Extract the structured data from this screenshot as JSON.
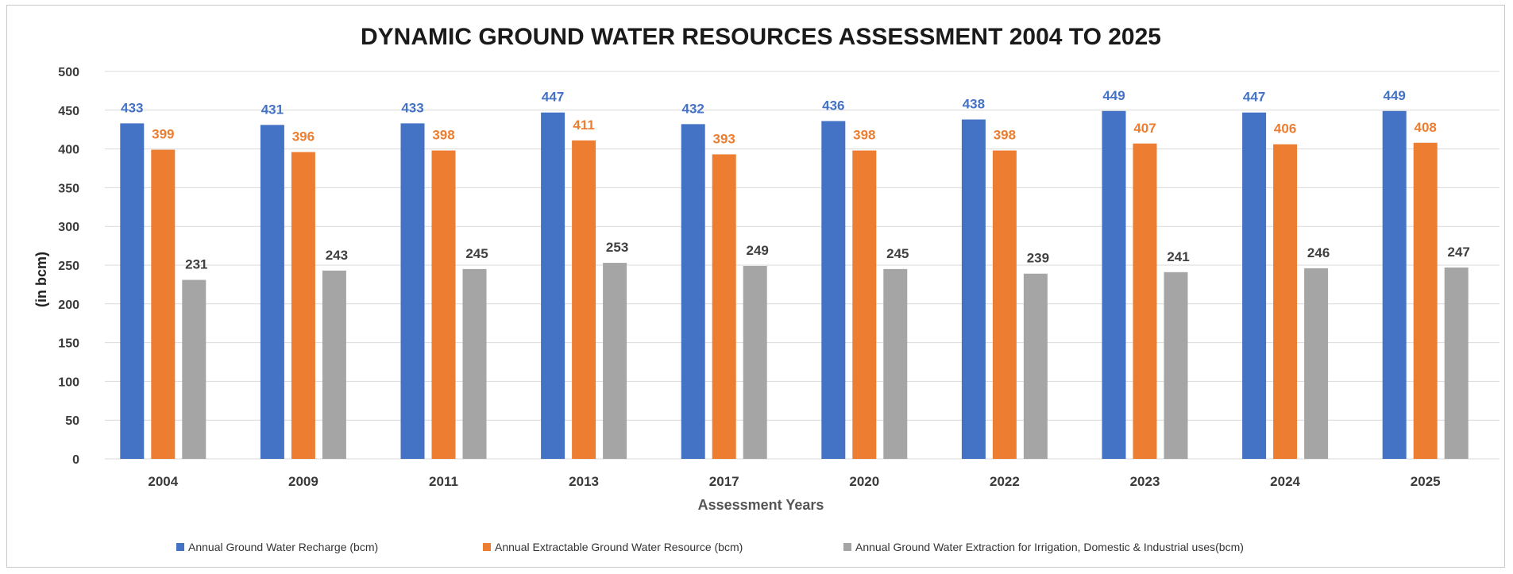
{
  "chart_data": {
    "type": "bar",
    "title": "DYNAMIC GROUND WATER RESOURCES ASSESSMENT 2004 TO 2025",
    "xlabel": "Assessment Years",
    "ylabel": "(in bcm)",
    "ylim": [
      0,
      500
    ],
    "yticks": [
      0,
      50,
      100,
      150,
      200,
      250,
      300,
      350,
      400,
      450,
      500
    ],
    "grid": true,
    "legend_position": "bottom",
    "categories": [
      "2004",
      "2009",
      "2011",
      "2013",
      "2017",
      "2020",
      "2022",
      "2023",
      "2024",
      "2025"
    ],
    "series": [
      {
        "name": "Annual Ground Water Recharge (bcm)",
        "color": "#4472C4",
        "label_color": "#4472C4",
        "values": [
          433,
          431,
          433,
          447,
          432,
          436,
          438,
          449,
          447,
          449
        ]
      },
      {
        "name": "Annual Extractable Ground Water Resource (bcm)",
        "color": "#ED7D31",
        "label_color": "#ED7D31",
        "values": [
          399,
          396,
          398,
          411,
          393,
          398,
          398,
          407,
          406,
          408
        ]
      },
      {
        "name": "Annual Ground Water Extraction for Irrigation, Domestic & Industrial uses(bcm)",
        "color": "#A5A5A5",
        "label_color": "#404040",
        "values": [
          231,
          243,
          245,
          253,
          249,
          245,
          239,
          241,
          246,
          247
        ]
      }
    ]
  }
}
